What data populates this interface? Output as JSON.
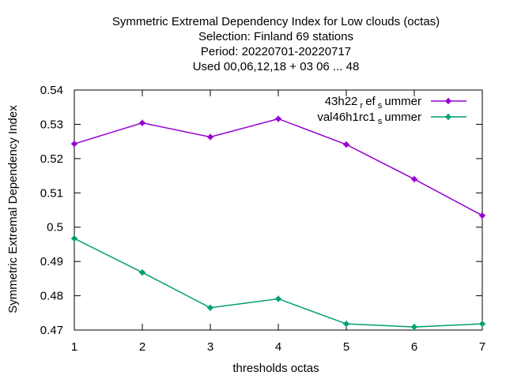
{
  "chart_data": {
    "type": "line",
    "title_lines": [
      "Symmetric Extremal Dependency Index  for Low clouds (octas)",
      "Selection: Finland      69 stations",
      "Period: 20220701-20220717",
      "Used  00,06,12,18  + 03 06 ... 48"
    ],
    "xlabel": "thresholds octas",
    "ylabel": "Symmetric Extremal Dependency Index",
    "x": [
      1,
      2,
      3,
      4,
      5,
      6,
      7
    ],
    "xlim": [
      1,
      7
    ],
    "ylim": [
      0.47,
      0.54
    ],
    "y_ticks": [
      0.47,
      0.48,
      0.49,
      0.5,
      0.51,
      0.52,
      0.53,
      0.54
    ],
    "y_tick_labels": [
      "0.47",
      "0.48",
      "0.49",
      "0.5",
      "0.51",
      "0.52",
      "0.53",
      "0.54"
    ],
    "x_tick_labels": [
      "1",
      "2",
      "3",
      "4",
      "5",
      "6",
      "7"
    ],
    "grid": false,
    "legend_position": "top-right",
    "series": [
      {
        "legend": {
          "base": "43h22",
          "sub1": "r",
          "mid": "ef",
          "sub2": "s",
          "tail": "ummer"
        },
        "color": "#9400d3",
        "values": [
          0.5243,
          0.5304,
          0.5263,
          0.5316,
          0.5241,
          0.514,
          0.5034
        ]
      },
      {
        "legend": {
          "base": "val46h1rc1",
          "sub1": "",
          "mid": "",
          "sub2": "s",
          "tail": "ummer"
        },
        "color": "#009e73",
        "values": [
          0.4967,
          0.4868,
          0.4765,
          0.4791,
          0.4718,
          0.4709,
          0.4718
        ]
      }
    ]
  }
}
